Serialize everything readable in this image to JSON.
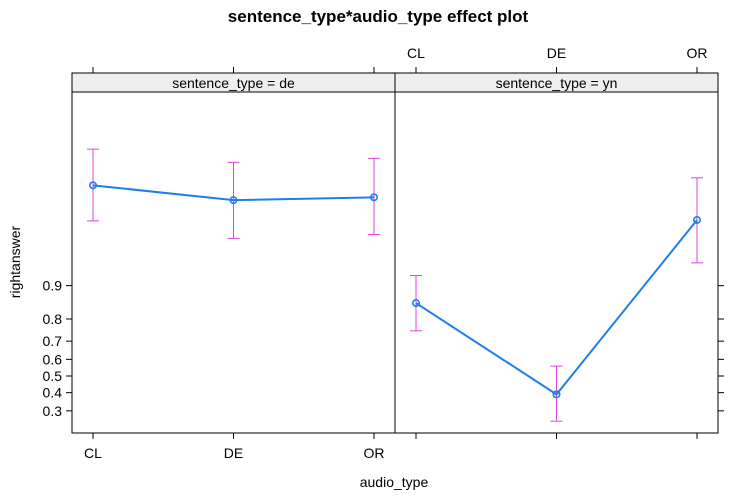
{
  "chart_data": {
    "type": "line",
    "title": "sentence_type*audio_type effect plot",
    "xlabel": "audio_type",
    "ylabel": "rightanswer",
    "categories": [
      "CL",
      "DE",
      "OR"
    ],
    "y_ticks": [
      0.3,
      0.4,
      0.5,
      0.6,
      0.7,
      0.8,
      0.9
    ],
    "y_tick_labels": [
      "0.3",
      "0.4",
      "0.5",
      "0.6",
      "0.7",
      "0.8",
      "0.9"
    ],
    "y_scale": "logit",
    "y_range": [
      0.2,
      0.999
    ],
    "grid": false,
    "legend": "none",
    "colors": {
      "line": "#1f7ee8",
      "error_bar": "#e040e0",
      "strip": "#efefef",
      "axis": "#000000"
    },
    "panels": [
      {
        "strip_label": "sentence_type = de",
        "fit": [
          0.9904,
          0.9863,
          0.9872
        ],
        "lower": [
          0.9775,
          0.966,
          0.969
        ],
        "upper": [
          0.996,
          0.9945,
          0.995
        ]
      },
      {
        "strip_label": "sentence_type = yn",
        "fit": [
          0.855,
          0.39,
          0.978
        ],
        "lower": [
          0.75,
          0.25,
          0.94
        ],
        "upper": [
          0.92,
          0.56,
          0.992
        ]
      }
    ]
  }
}
